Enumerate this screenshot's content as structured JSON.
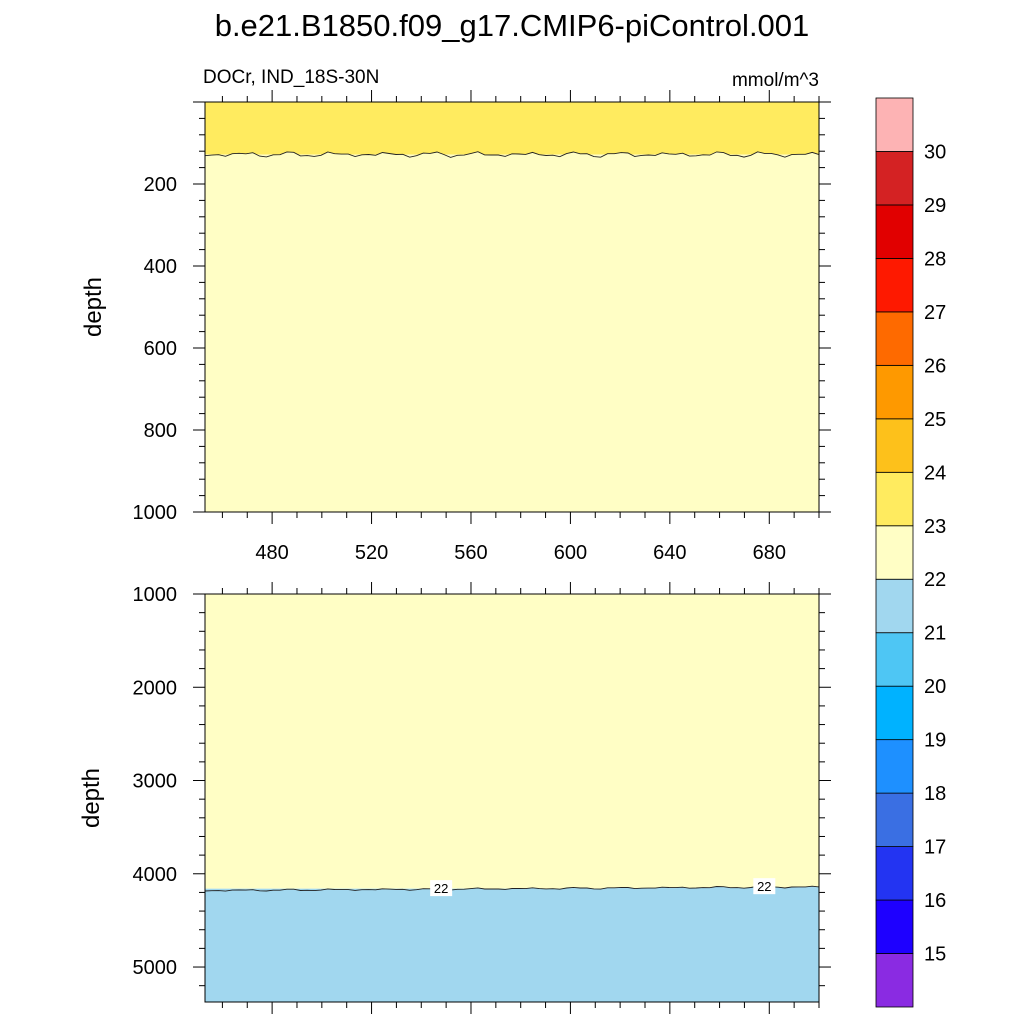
{
  "chart_data": {
    "type": "contour",
    "title": "b.e21.B1850.f09_g17.CMIP6-piControl.001",
    "subtitle_left": "DOCr, IND_18S-30N",
    "subtitle_right": "mmol/m^3",
    "xlim": [
      453,
      700
    ],
    "x_ticks": [
      480,
      520,
      560,
      600,
      640,
      680
    ],
    "panels": [
      {
        "name": "upper",
        "ylabel": "depth",
        "ylim": [
          0,
          1000
        ],
        "y_ticks": [
          200,
          400,
          600,
          800,
          1000
        ],
        "contour_lines": [
          {
            "level": 23,
            "depth": 128,
            "label_text": "",
            "label_x": []
          }
        ],
        "regions": [
          {
            "range": "23-24",
            "from_depth": 0,
            "to_depth": 128,
            "color": "#ffeb5f"
          },
          {
            "range": "22-23",
            "from_depth": 128,
            "to_depth": 1000,
            "color": "#fffec5"
          }
        ]
      },
      {
        "name": "lower",
        "ylabel": "depth",
        "ylim": [
          1000,
          5375
        ],
        "y_ticks": [
          1000,
          2000,
          3000,
          4000,
          5000
        ],
        "contour_lines": [
          {
            "level": 22,
            "depth_left": 4180,
            "depth_right": 4140,
            "label_text": "22",
            "label_x": [
              548,
              678
            ]
          }
        ],
        "regions": [
          {
            "range": "22-23",
            "from_depth": 1000,
            "to_depth": 4160,
            "color": "#fffec5"
          },
          {
            "range": "21-22",
            "from_depth": 4160,
            "to_depth": 5375,
            "color": "#a1d7ef"
          }
        ]
      }
    ],
    "colorbar": {
      "labels": [
        "15",
        "16",
        "17",
        "18",
        "19",
        "20",
        "21",
        "22",
        "23",
        "24",
        "25",
        "26",
        "27",
        "28",
        "29",
        "30"
      ],
      "colors": [
        "#8a2be2",
        "#1e00ff",
        "#2334f2",
        "#3a6fe3",
        "#1e90ff",
        "#00b2ff",
        "#4ec6f4",
        "#a1d7ef",
        "#fffec5",
        "#ffeb5f",
        "#fdc11b",
        "#fe9900",
        "#fe6a00",
        "#fe1900",
        "#e10000",
        "#d42223",
        "#fdb3b4"
      ]
    }
  }
}
